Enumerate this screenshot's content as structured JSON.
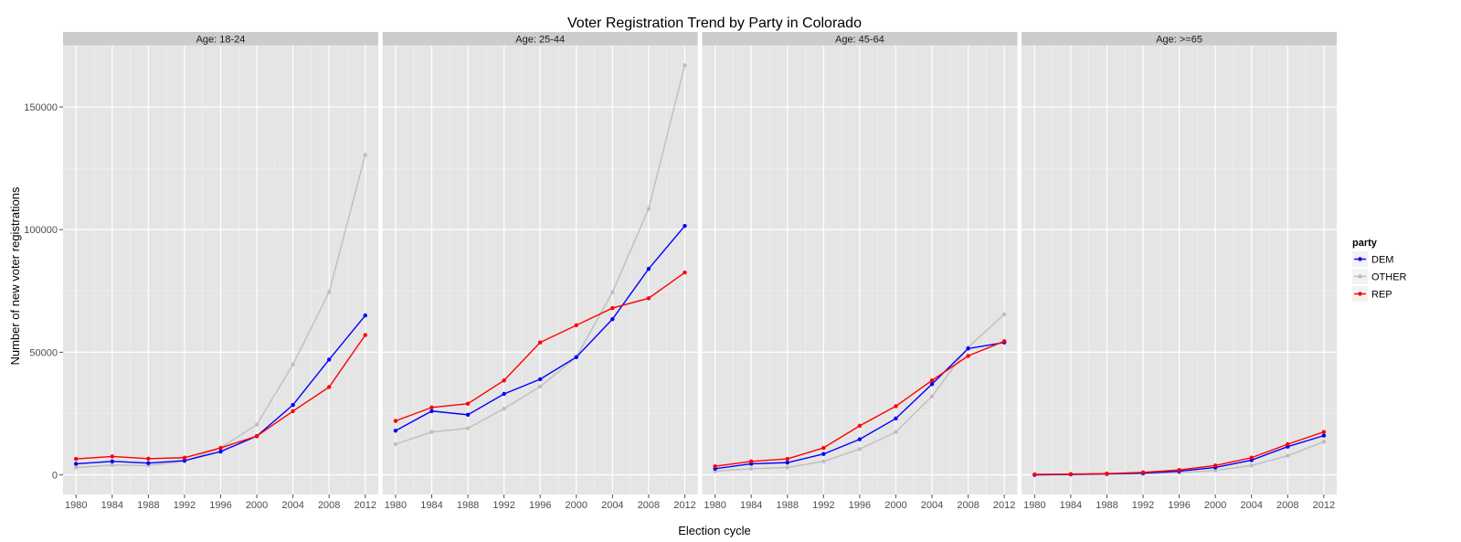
{
  "chart_data": {
    "type": "line",
    "title": "Voter Registration Trend by Party in Colorado",
    "xlabel": "Election cycle",
    "ylabel": "Number of new voter registrations",
    "x": [
      1980,
      1984,
      1988,
      1992,
      1996,
      2000,
      2004,
      2008,
      2012
    ],
    "xticks": [
      "1980",
      "1984",
      "1988",
      "1992",
      "1996",
      "2000",
      "2004",
      "2008",
      "2012"
    ],
    "ylim": [
      -8000,
      175000
    ],
    "yticks": [
      0,
      50000,
      100000,
      150000
    ],
    "ytick_labels": [
      "0",
      "50000",
      "100000",
      "150000"
    ],
    "grid": true,
    "legend": {
      "title": "party",
      "placement": "right"
    },
    "colors": {
      "DEM": "#0000ff",
      "OTHER": "#bebebe",
      "REP": "#ff0000"
    },
    "series_order": [
      "OTHER",
      "DEM",
      "REP"
    ],
    "legend_order": [
      "DEM",
      "OTHER",
      "REP"
    ],
    "facets": [
      {
        "label": "Age: 18-24",
        "series": [
          {
            "name": "DEM",
            "values": [
              4500,
              5500,
              4800,
              5800,
              9500,
              15800,
              28500,
              47000,
              65000
            ]
          },
          {
            "name": "OTHER",
            "values": [
              3000,
              4000,
              3800,
              5500,
              11000,
              20500,
              45000,
              74500,
              130500
            ]
          },
          {
            "name": "REP",
            "values": [
              6500,
              7500,
              6600,
              7000,
              11000,
              15800,
              26000,
              35800,
              57000
            ]
          }
        ]
      },
      {
        "label": "Age: 25-44",
        "series": [
          {
            "name": "DEM",
            "values": [
              18000,
              26000,
              24500,
              33000,
              39000,
              48000,
              63500,
              84000,
              101500
            ]
          },
          {
            "name": "OTHER",
            "values": [
              12500,
              17500,
              19000,
              27000,
              36000,
              48000,
              74500,
              108500,
              167000
            ]
          },
          {
            "name": "REP",
            "values": [
              22000,
              27500,
              29000,
              38500,
              54000,
              61000,
              68000,
              72000,
              82500
            ]
          }
        ]
      },
      {
        "label": "Age: 45-64",
        "series": [
          {
            "name": "DEM",
            "values": [
              2500,
              4500,
              5000,
              8500,
              14500,
              23000,
              37000,
              51500,
              54000
            ]
          },
          {
            "name": "OTHER",
            "values": [
              1500,
              2500,
              3000,
              5500,
              10500,
              17500,
              32000,
              52000,
              65500
            ]
          },
          {
            "name": "REP",
            "values": [
              3500,
              5500,
              6500,
              11000,
              20000,
              28000,
              38500,
              48500,
              54500
            ]
          }
        ]
      },
      {
        "label": "Age: >=65",
        "series": [
          {
            "name": "DEM",
            "values": [
              0,
              200,
              400,
              700,
              1500,
              3000,
              6000,
              11500,
              16000
            ]
          },
          {
            "name": "OTHER",
            "values": [
              0,
              100,
              200,
              400,
              900,
              1800,
              3800,
              7800,
              13500
            ]
          },
          {
            "name": "REP",
            "values": [
              200,
              300,
              500,
              1000,
              2000,
              3800,
              7000,
              12500,
              17500
            ]
          }
        ]
      }
    ]
  }
}
